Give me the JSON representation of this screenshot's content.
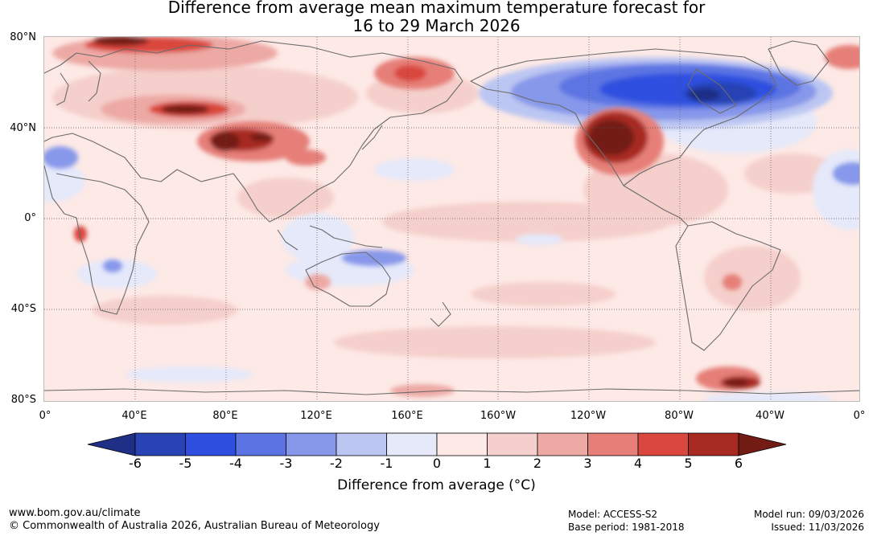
{
  "title": {
    "line1": "Difference from average mean maximum temperature forecast for",
    "line2": "16 to 29 March 2026"
  },
  "axes": {
    "lat_labels": [
      "80°N",
      "40°N",
      "0°",
      "40°S",
      "80°S"
    ],
    "lon_labels": [
      "0°",
      "40°E",
      "80°E",
      "120°E",
      "160°E",
      "160°W",
      "120°W",
      "80°W",
      "40°W",
      "0°"
    ]
  },
  "colorbar": {
    "ticks": [
      "-6",
      "-5",
      "-4",
      "-3",
      "-2",
      "-1",
      "0",
      "1",
      "2",
      "3",
      "4",
      "5",
      "6"
    ],
    "colors": [
      "#1f2f86",
      "#2743b4",
      "#2f4fe0",
      "#5c74e3",
      "#8797ea",
      "#bcc6f2",
      "#e5e9fa",
      "#fde9e6",
      "#f5cfcb",
      "#eda9a4",
      "#e67f78",
      "#d9473e",
      "#a72a22",
      "#731c16"
    ],
    "label": "Difference from average (°C)"
  },
  "footer": {
    "url": "www.bom.gov.au/climate",
    "copyright": "© Commonwealth of Australia 2026, Australian Bureau of Meteorology",
    "model": "Model: ACCESS-S2",
    "base_period": "Base period: 1981-2018",
    "model_run": "Model run: 09/03/2026",
    "issued": "Issued: 11/03/2026"
  }
}
